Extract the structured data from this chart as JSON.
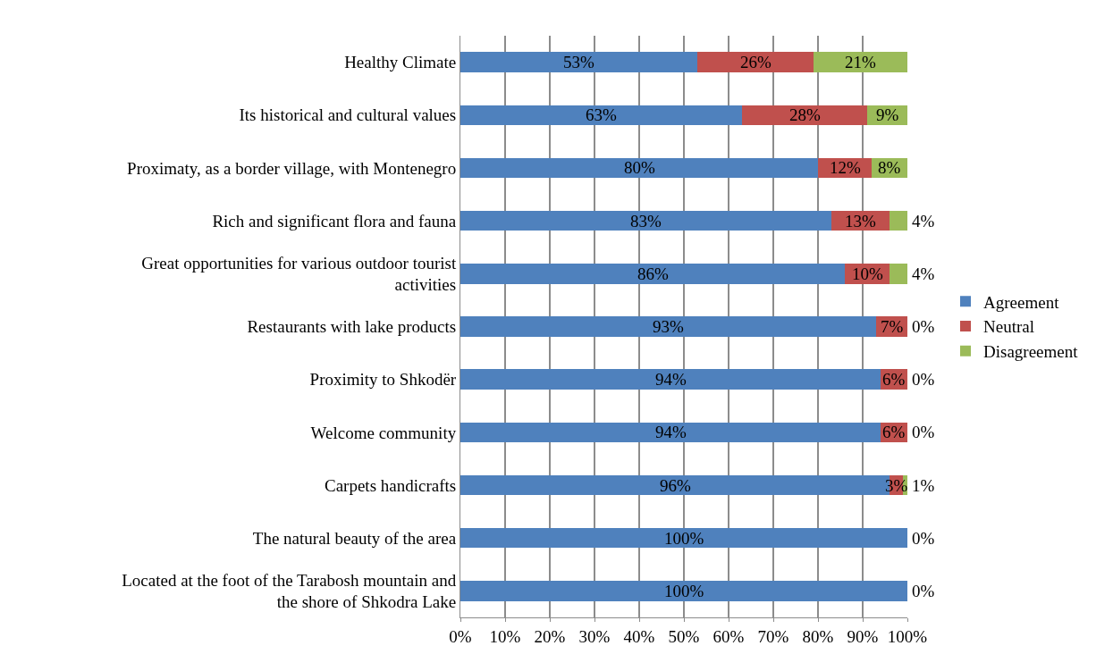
{
  "chart_data": {
    "type": "bar",
    "orientation": "horizontal",
    "stacked": true,
    "categories": [
      "Healthy Climate",
      "Its historical and cultural values",
      "Proximaty, as a border village, with Montenegro",
      "Rich and significant flora and fauna",
      "Great opportunities for various outdoor tourist activities",
      "Restaurants with lake products",
      "Proximity to Shkodër",
      "Welcome community",
      "Carpets handicrafts",
      "The natural beauty of the area",
      "Located at the foot of the Tarabosh mountain and the shore of Shkodra Lake"
    ],
    "series": [
      {
        "name": "Agreement",
        "color": "#4f81bd",
        "values": [
          53,
          63,
          80,
          83,
          86,
          93,
          94,
          94,
          96,
          100,
          100
        ],
        "value_labels": [
          "53%",
          "63%",
          "80%",
          "83%",
          "86%",
          "93%",
          "94%",
          "94%",
          "96%",
          "100%",
          "100%"
        ]
      },
      {
        "name": "Neutral",
        "color": "#c0504d",
        "values": [
          26,
          28,
          12,
          13,
          10,
          7,
          6,
          6,
          3,
          0,
          0
        ],
        "value_labels": [
          "26%",
          "28%",
          "12%",
          "13%",
          "10%",
          "7%",
          "6%",
          "6%",
          "3%",
          null,
          null
        ]
      },
      {
        "name": "Disagreement",
        "color": "#9bbb59",
        "values": [
          21,
          9,
          8,
          4,
          4,
          0,
          0,
          0,
          1,
          0,
          0
        ],
        "value_labels": [
          "21%",
          "9%",
          "8%",
          "4%",
          "4%",
          "0%",
          "0%",
          "0%",
          "1%",
          "0%",
          "0%"
        ]
      }
    ],
    "xlim": [
      0,
      100
    ],
    "xticks": [
      {
        "value": 0,
        "label": "0%"
      },
      {
        "value": 10,
        "label": "10%"
      },
      {
        "value": 20,
        "label": "20%"
      },
      {
        "value": 30,
        "label": "30%"
      },
      {
        "value": 40,
        "label": "40%"
      },
      {
        "value": 50,
        "label": "50%"
      },
      {
        "value": 60,
        "label": "60%"
      },
      {
        "value": 70,
        "label": "70%"
      },
      {
        "value": 80,
        "label": "80%"
      },
      {
        "value": 90,
        "label": "90%"
      },
      {
        "value": 100,
        "label": "100%"
      }
    ],
    "grid": "x",
    "legend": "right"
  }
}
